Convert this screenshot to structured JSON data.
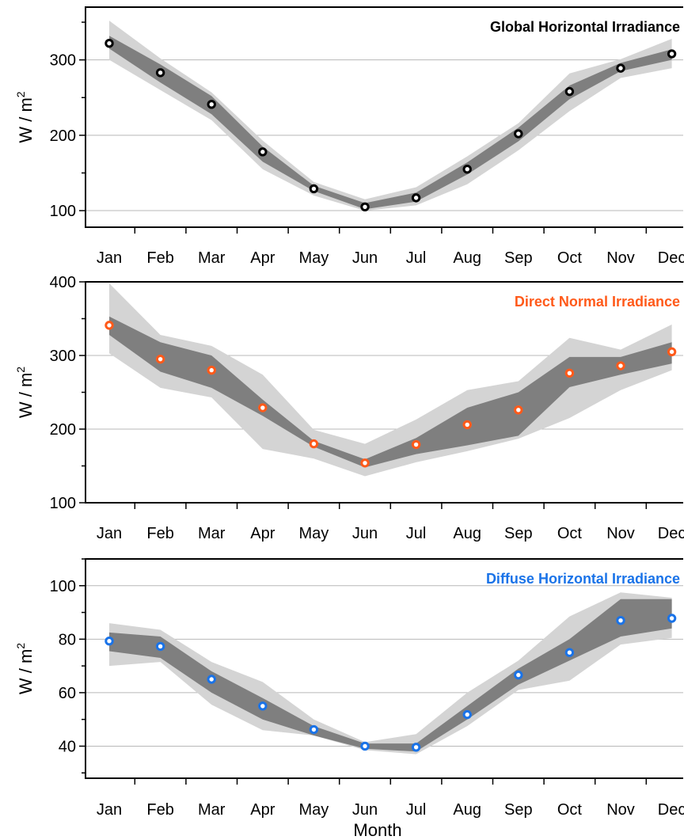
{
  "xlabel": "Month",
  "chart_data": [
    {
      "type": "line",
      "title": "Global Horizontal Irradiance",
      "title_color": "#000000",
      "marker_color": "#000000",
      "ylabel": "W / m",
      "ylabel_sup": "2",
      "ylim": [
        78,
        370
      ],
      "yticks": [
        100,
        200,
        300
      ],
      "categories": [
        "Jan",
        "Feb",
        "Mar",
        "Apr",
        "May",
        "Jun",
        "Jul",
        "Aug",
        "Sep",
        "Oct",
        "Nov",
        "Dec"
      ],
      "grid": true,
      "values": [
        322,
        283,
        241,
        178,
        129,
        105,
        117,
        155,
        202,
        258,
        289,
        308
      ],
      "inner_band": {
        "lower": [
          315,
          270,
          228,
          165,
          126,
          102,
          112,
          148,
          192,
          248,
          285,
          300
        ],
        "upper": [
          332,
          294,
          252,
          185,
          133,
          110,
          124,
          164,
          210,
          266,
          296,
          314
        ]
      },
      "outer_band": {
        "lower": [
          300,
          260,
          220,
          155,
          120,
          100,
          107,
          135,
          180,
          232,
          276,
          289
        ],
        "upper": [
          352,
          302,
          257,
          193,
          138,
          115,
          131,
          172,
          216,
          282,
          301,
          328
        ]
      }
    },
    {
      "type": "line",
      "title": "Direct Normal Irradiance",
      "title_color": "#ff5a1a",
      "marker_color": "#ff5a1a",
      "ylabel": "W / m",
      "ylabel_sup": "2",
      "ylim": [
        100,
        400
      ],
      "yticks": [
        100,
        200,
        300,
        400
      ],
      "categories": [
        "Jan",
        "Feb",
        "Mar",
        "Apr",
        "May",
        "Jun",
        "Jul",
        "Aug",
        "Sep",
        "Oct",
        "Nov",
        "Dec"
      ],
      "grid": true,
      "values": [
        341,
        295,
        280,
        229,
        180,
        154,
        179,
        206,
        226,
        276,
        286,
        305
      ],
      "inner_band": {
        "lower": [
          328,
          278,
          256,
          218,
          176,
          148,
          166,
          178,
          191,
          257,
          274,
          289
        ],
        "upper": [
          353,
          318,
          300,
          240,
          184,
          159,
          188,
          229,
          250,
          298,
          298,
          318
        ]
      },
      "outer_band": {
        "lower": [
          303,
          256,
          243,
          173,
          160,
          136,
          155,
          170,
          187,
          215,
          253,
          280
        ],
        "upper": [
          398,
          328,
          313,
          274,
          199,
          180,
          213,
          253,
          265,
          324,
          308,
          342
        ]
      }
    },
    {
      "type": "line",
      "title": "Diffuse Horizontal Irradiance",
      "title_color": "#1a73e8",
      "marker_color": "#1a73e8",
      "ylabel": "W / m",
      "ylabel_sup": "2",
      "ylim": [
        28,
        110
      ],
      "yticks": [
        40,
        60,
        80,
        100
      ],
      "categories": [
        "Jan",
        "Feb",
        "Mar",
        "Apr",
        "May",
        "Jun",
        "Jul",
        "Aug",
        "Sep",
        "Oct",
        "Nov",
        "Dec"
      ],
      "grid": true,
      "values": [
        79.3,
        77.3,
        65,
        55,
        46.2,
        40,
        39.6,
        51.8,
        66.6,
        75,
        87,
        87.8
      ],
      "inner_band": {
        "lower": [
          75.5,
          73,
          60,
          50,
          44,
          39,
          38,
          50,
          63,
          72,
          81,
          84
        ],
        "upper": [
          82.5,
          81,
          68,
          58,
          47.5,
          41,
          41,
          55,
          69,
          80,
          95,
          95
        ]
      },
      "outer_band": {
        "lower": [
          70,
          71.5,
          55.5,
          46,
          44,
          38.5,
          37,
          47.5,
          61,
          64.5,
          78,
          80.5
        ],
        "upper": [
          86,
          83.5,
          71.5,
          64,
          50,
          41.5,
          44.5,
          60,
          72,
          88.5,
          97.5,
          95.5
        ]
      }
    }
  ]
}
